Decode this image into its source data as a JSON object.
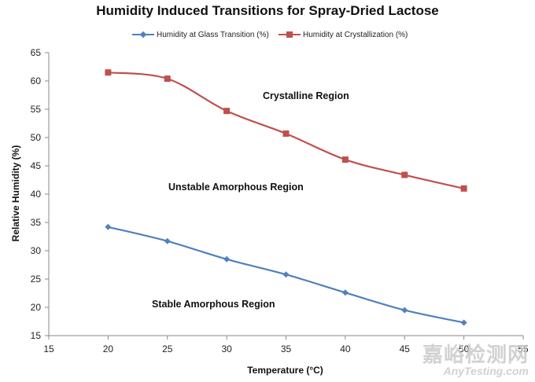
{
  "chart_data": {
    "type": "line",
    "title": "Humidity Induced Transitions for Spray-Dried Lactose",
    "xlabel": "Temperature (°C)",
    "ylabel": "Relative Humidity (%)",
    "xlim": [
      15,
      55
    ],
    "ylim": [
      15,
      65
    ],
    "x_ticks": [
      15,
      20,
      25,
      30,
      35,
      40,
      45,
      50,
      55
    ],
    "y_ticks": [
      15,
      20,
      25,
      30,
      35,
      40,
      45,
      50,
      55,
      60,
      65
    ],
    "grid": false,
    "legend_position": "top",
    "x": [
      20,
      25,
      30,
      35,
      40,
      45,
      50
    ],
    "series": [
      {
        "name": "Humidity at Glass Transition (%)",
        "marker": "diamond",
        "color": "#4F81BD",
        "values": [
          34.2,
          31.7,
          28.5,
          25.8,
          22.6,
          19.5,
          17.3
        ]
      },
      {
        "name": "Humidity at Crystallization (%)",
        "marker": "square",
        "color": "#C0504D",
        "values": [
          61.5,
          60.4,
          54.7,
          50.7,
          46.1,
          43.4,
          41.0
        ]
      }
    ],
    "annotations": [
      "Crystalline Region",
      "Unstable Amorphous Region",
      "Stable Amorphous Region"
    ]
  },
  "watermark": {
    "line1": "嘉峪检测网",
    "line2": "AnyTesting.com"
  }
}
